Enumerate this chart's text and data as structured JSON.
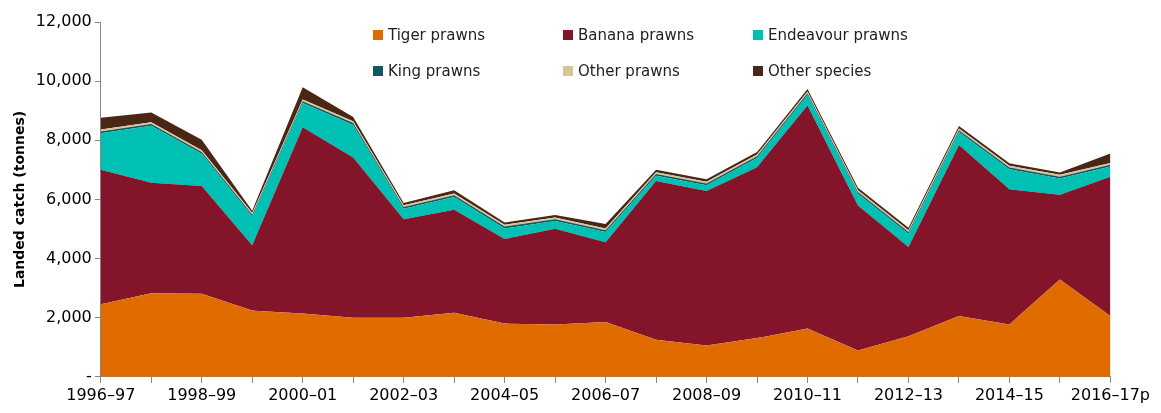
{
  "chart_data": {
    "type": "area",
    "stacked": true,
    "ylabel": "Landed catch (tonnes)",
    "categories": [
      "1996–97",
      null,
      "1998–99",
      null,
      "2000–01",
      null,
      "2002–03",
      null,
      "2004–05",
      null,
      "2006–07",
      null,
      "2008–09",
      null,
      "2010–11",
      null,
      "2012–13",
      null,
      "2014–15",
      null,
      "2016–17p"
    ],
    "series": [
      {
        "name": "Tiger prawns",
        "color": "#e06c00",
        "values": [
          2450,
          2830,
          2810,
          2240,
          2140,
          2000,
          2000,
          2170,
          1800,
          1770,
          1850,
          1250,
          1060,
          1310,
          1630,
          890,
          1370,
          2060,
          1770,
          3290,
          2060
        ]
      },
      {
        "name": "Banana prawns",
        "color": "#83142a",
        "values": [
          4550,
          3730,
          3640,
          2210,
          6300,
          5420,
          3330,
          3480,
          2860,
          3240,
          2700,
          5370,
          5220,
          5780,
          7550,
          4900,
          3020,
          5780,
          4570,
          2870,
          4710
        ]
      },
      {
        "name": "Endeavour prawns",
        "color": "#00bfb3",
        "values": [
          1240,
          1930,
          1090,
          970,
          820,
          1100,
          350,
          430,
          360,
          260,
          350,
          180,
          200,
          310,
          350,
          400,
          450,
          440,
          680,
          550,
          340
        ]
      },
      {
        "name": "King prawns",
        "color": "#0d5a63",
        "values": [
          60,
          60,
          60,
          60,
          60,
          60,
          60,
          60,
          60,
          60,
          60,
          60,
          60,
          60,
          60,
          60,
          60,
          60,
          60,
          60,
          60
        ]
      },
      {
        "name": "Other prawns",
        "color": "#d9c49a",
        "values": [
          60,
          60,
          60,
          60,
          60,
          60,
          60,
          60,
          60,
          60,
          60,
          60,
          60,
          60,
          60,
          60,
          60,
          60,
          60,
          60,
          60
        ]
      },
      {
        "name": "Other species",
        "color": "#4a2617",
        "values": [
          400,
          330,
          360,
          80,
          410,
          150,
          80,
          110,
          80,
          80,
          150,
          80,
          80,
          80,
          80,
          80,
          80,
          80,
          80,
          80,
          320
        ]
      }
    ],
    "ylim": [
      0,
      12000
    ],
    "yticks": [
      {
        "value": 0,
        "label": "-"
      },
      {
        "value": 2000,
        "label": "2,000"
      },
      {
        "value": 4000,
        "label": "4,000"
      },
      {
        "value": 6000,
        "label": "6,000"
      },
      {
        "value": 8000,
        "label": "8,000"
      },
      {
        "value": 10000,
        "label": "10,000"
      },
      {
        "value": 12000,
        "label": "12,000"
      }
    ],
    "legend": "top",
    "marker": "none"
  }
}
